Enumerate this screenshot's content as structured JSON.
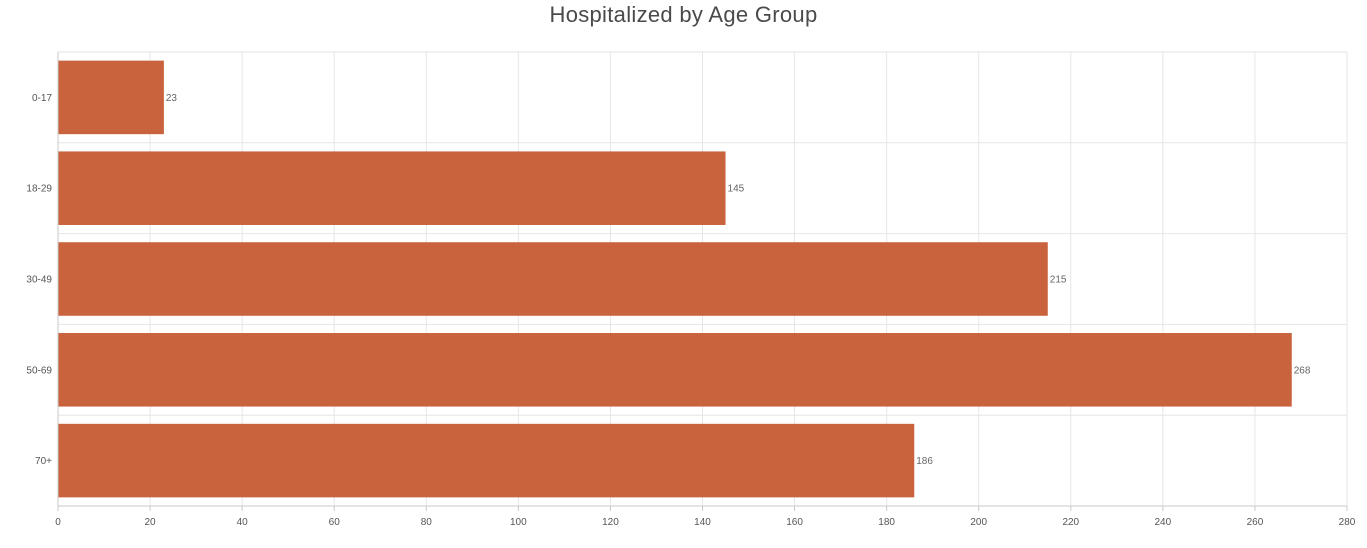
{
  "chart_data": {
    "type": "bar",
    "orientation": "horizontal",
    "title": "Hospitalized by Age Group",
    "xlabel": "",
    "ylabel": "",
    "categories": [
      "0-17",
      "18-29",
      "30-49",
      "50-69",
      "70+"
    ],
    "values": [
      23,
      145,
      215,
      268,
      186
    ],
    "xlim": [
      0,
      280
    ],
    "xticks": [
      0,
      20,
      40,
      60,
      80,
      100,
      120,
      140,
      160,
      180,
      200,
      220,
      240,
      260,
      280
    ],
    "grid": true,
    "legend": "none",
    "data_labels": true,
    "bar_color": "#c8633d",
    "grid_color": "#e6e6e6",
    "axis_color": "#c8c8c8"
  }
}
